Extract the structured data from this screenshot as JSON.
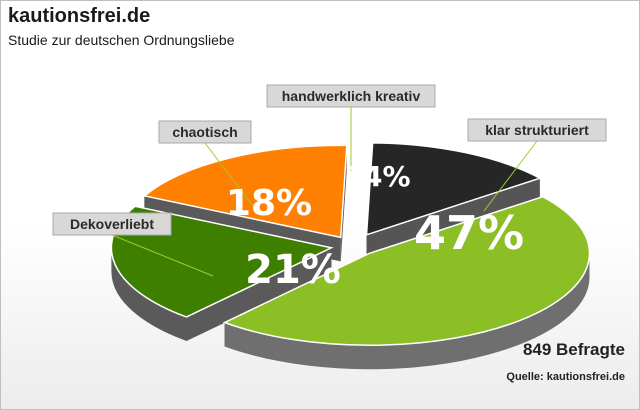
{
  "header": {
    "brand": "kautionsfrei.de",
    "subtitle": "Studie zur deutschen Ordnungsliebe"
  },
  "footer": {
    "respondents": "849 Befragte",
    "source": "Quelle: kautionsfrei.de"
  },
  "chart_data": {
    "type": "pie",
    "title": "",
    "slices": [
      {
        "label": "klar strukturiert",
        "value": 47,
        "display": "47%",
        "color": "#8cbf26",
        "side": "#6f6f6f"
      },
      {
        "label": "Dekoverliebt",
        "value": 21,
        "display": "21%",
        "color": "#3f7f00",
        "side": "#5a5a5a"
      },
      {
        "label": "chaotisch",
        "value": 18,
        "display": "18%",
        "color": "#ff7f00",
        "side": "#5a5a5a"
      },
      {
        "label": "handwerklich kreativ",
        "value": 14,
        "display": "14%",
        "color": "#262626",
        "side": "#555555"
      }
    ],
    "legend": "callout labels"
  }
}
